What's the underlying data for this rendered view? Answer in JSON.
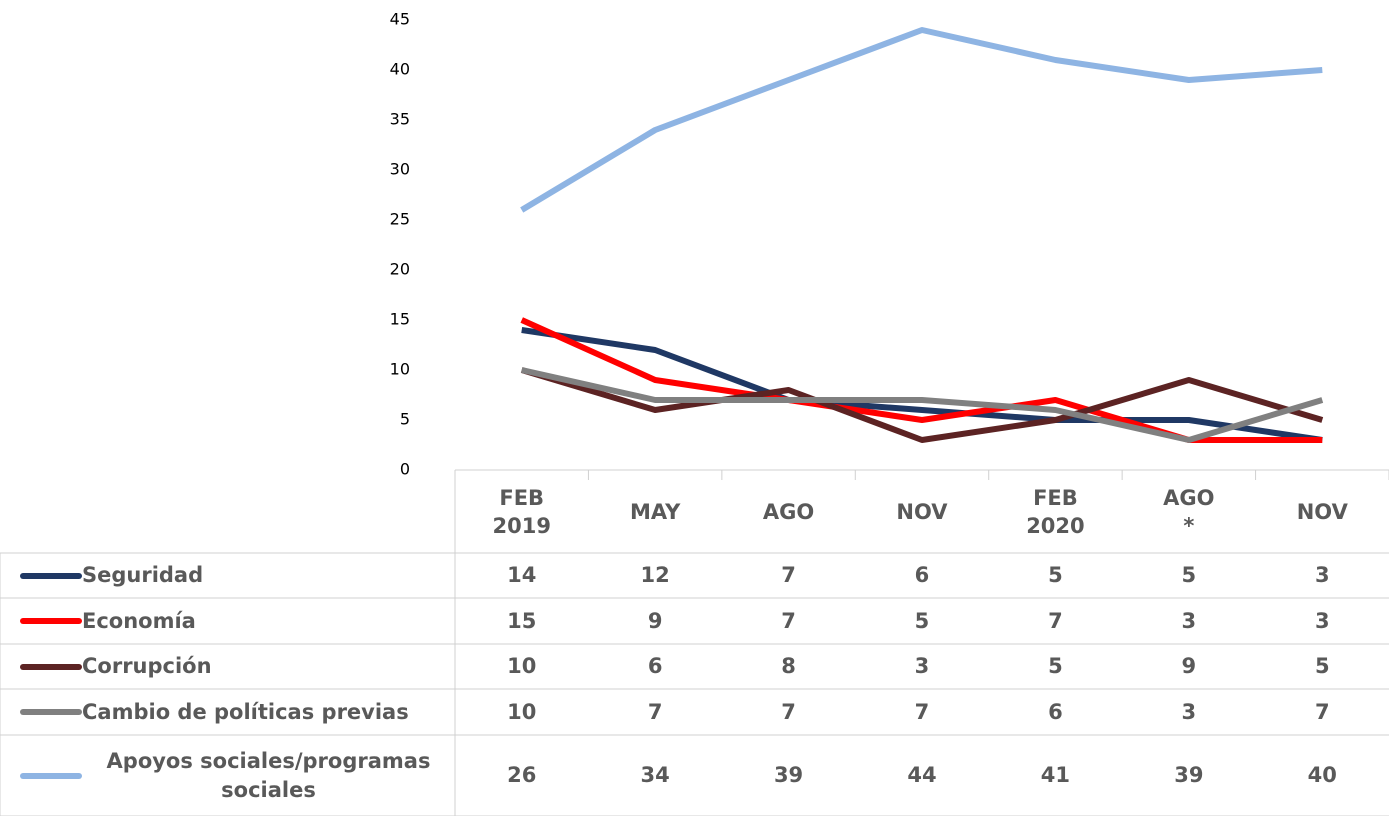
{
  "chart_data": {
    "type": "line",
    "categories": [
      "FEB 2019",
      "MAY",
      "AGO",
      "NOV",
      "FEB 2020",
      "AGO *",
      "NOV"
    ],
    "series": [
      {
        "name": "Seguridad",
        "color": "#1f3864",
        "values": [
          14,
          12,
          7,
          6,
          5,
          5,
          3
        ]
      },
      {
        "name": "Economía",
        "color": "#ff0000",
        "values": [
          15,
          9,
          7,
          5,
          7,
          3,
          3
        ]
      },
      {
        "name": "Corrupción",
        "color": "#5c2323",
        "values": [
          10,
          6,
          8,
          3,
          5,
          9,
          5
        ]
      },
      {
        "name": "Cambio de políticas previas",
        "color": "#808080",
        "values": [
          10,
          7,
          7,
          7,
          6,
          3,
          7
        ]
      },
      {
        "name": "Apoyos sociales/programas sociales",
        "color": "#8eb4e3",
        "values": [
          26,
          34,
          39,
          44,
          41,
          39,
          40
        ]
      }
    ],
    "ylim": [
      0,
      45
    ],
    "yticks": [
      0,
      5,
      10,
      15,
      20,
      25,
      30,
      35,
      40,
      45
    ],
    "data_table": true
  }
}
